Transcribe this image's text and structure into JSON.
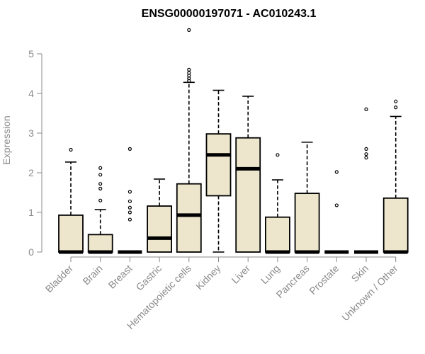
{
  "chart_data": {
    "type": "boxplot",
    "title": "ENSG00000197071 - AC010243.1",
    "xlabel": "",
    "ylabel": "Expression",
    "ylim": [
      0,
      5.6
    ],
    "y_ticks": [
      0,
      1,
      2,
      3,
      4,
      5
    ],
    "grid": false,
    "colors": {
      "box_fill": "#ede6cc",
      "box_stroke": "#000000",
      "axis": "#8a8a8a"
    },
    "categories": [
      "Bladder",
      "Brain",
      "Breast",
      "Gastric",
      "Hematopoietic cells",
      "Kidney",
      "Liver",
      "Lung",
      "Pancreas",
      "Prostate",
      "Skin",
      "Unknown / Other"
    ],
    "boxes": [
      {
        "category": "Bladder",
        "q1": 0,
        "median": 0,
        "q3": 0.93,
        "whisker_low": 0,
        "whisker_high": 2.27,
        "outliers": [
          2.58
        ]
      },
      {
        "category": "Brain",
        "q1": 0,
        "median": 0,
        "q3": 0.44,
        "whisker_low": 0,
        "whisker_high": 1.07,
        "outliers": [
          1.3,
          1.6,
          1.72,
          1.95,
          2.12
        ]
      },
      {
        "category": "Breast",
        "q1": 0,
        "median": 0,
        "q3": 0,
        "whisker_low": 0,
        "whisker_high": 0,
        "outliers": [
          0.82,
          1.0,
          1.12,
          1.28,
          1.52,
          2.6
        ]
      },
      {
        "category": "Gastric",
        "q1": 0,
        "median": 0.35,
        "q3": 1.16,
        "whisker_low": 0,
        "whisker_high": 1.84,
        "outliers": []
      },
      {
        "category": "Hematopoietic cells",
        "q1": 0,
        "median": 0.93,
        "q3": 1.72,
        "whisker_low": 0,
        "whisker_high": 4.28,
        "outliers": [
          4.32,
          4.38,
          4.45,
          4.52,
          4.6,
          5.6
        ]
      },
      {
        "category": "Kidney",
        "q1": 1.42,
        "median": 2.45,
        "q3": 2.98,
        "whisker_low": 0,
        "whisker_high": 4.08,
        "outliers": []
      },
      {
        "category": "Liver",
        "q1": 0,
        "median": 2.1,
        "q3": 2.88,
        "whisker_low": 0,
        "whisker_high": 3.93,
        "outliers": []
      },
      {
        "category": "Lung",
        "q1": 0,
        "median": 0,
        "q3": 0.88,
        "whisker_low": 0,
        "whisker_high": 1.82,
        "outliers": [
          2.45
        ]
      },
      {
        "category": "Pancreas",
        "q1": 0,
        "median": 0,
        "q3": 1.48,
        "whisker_low": 0,
        "whisker_high": 2.77,
        "outliers": []
      },
      {
        "category": "Prostate",
        "q1": 0,
        "median": 0,
        "q3": 0,
        "whisker_low": 0,
        "whisker_high": 0,
        "outliers": [
          1.18,
          2.02
        ]
      },
      {
        "category": "Skin",
        "q1": 0,
        "median": 0,
        "q3": 0,
        "whisker_low": 0,
        "whisker_high": 0,
        "outliers": [
          2.38,
          2.47,
          2.6,
          3.6
        ]
      },
      {
        "category": "Unknown / Other",
        "q1": 0,
        "median": 0,
        "q3": 1.36,
        "whisker_low": 0,
        "whisker_high": 3.42,
        "outliers": [
          3.65,
          3.8
        ]
      }
    ]
  }
}
